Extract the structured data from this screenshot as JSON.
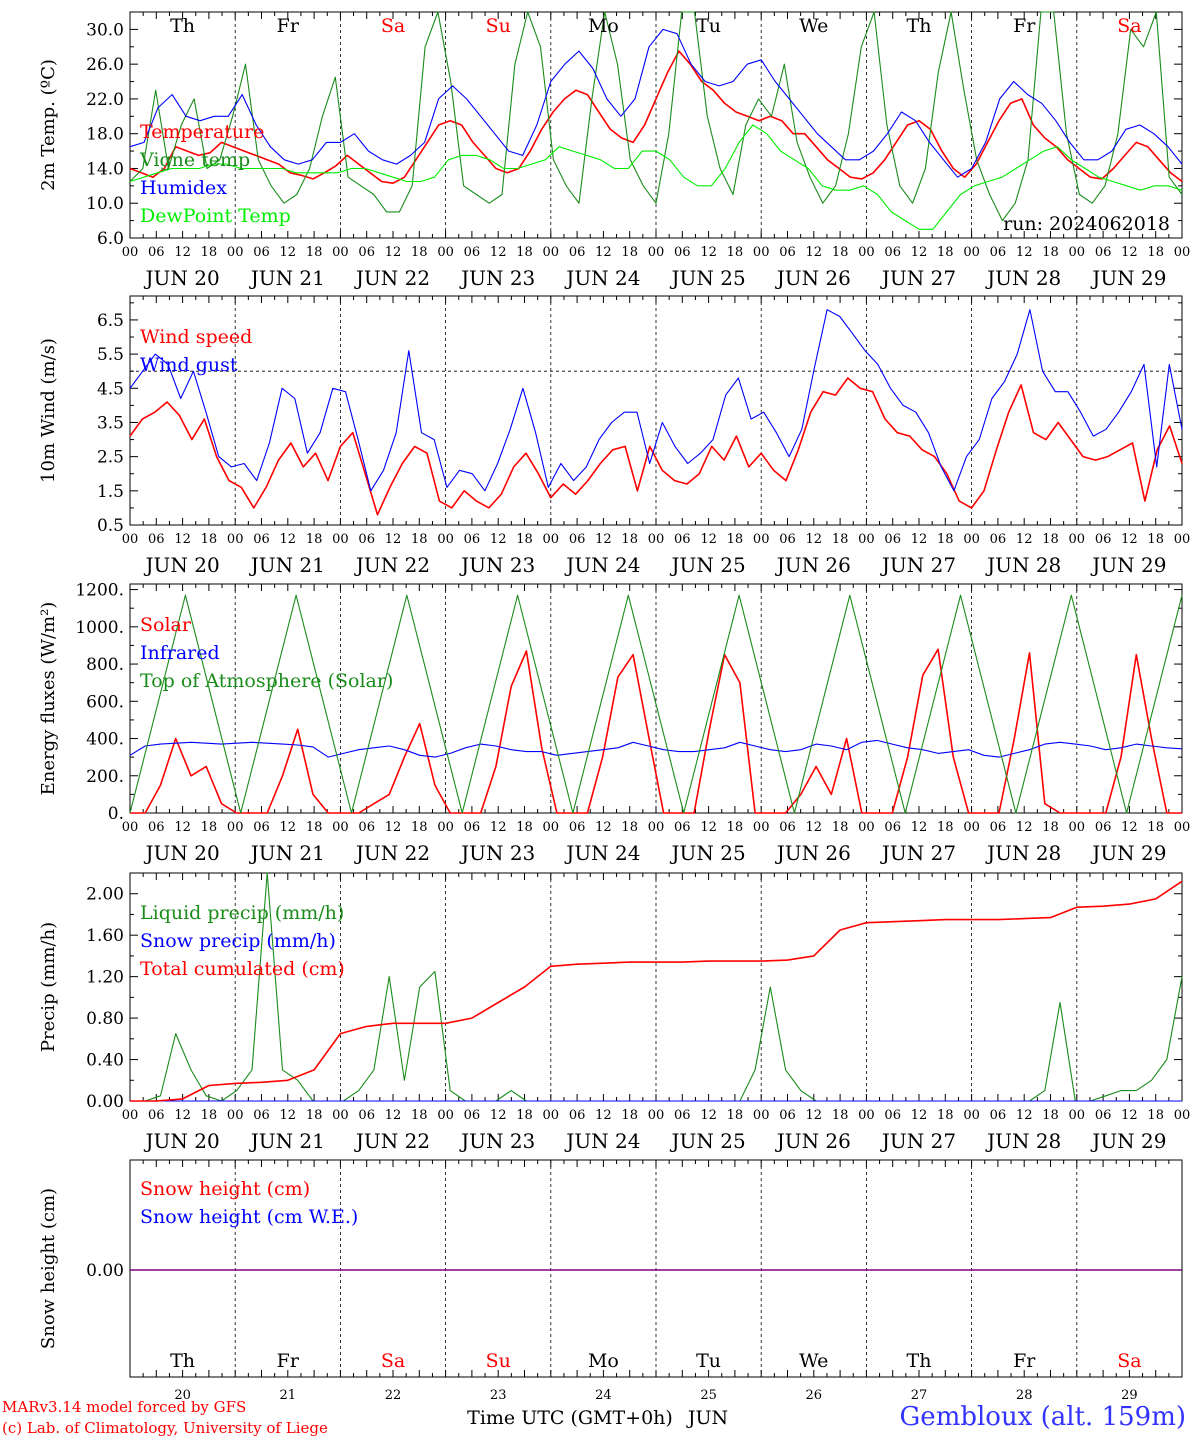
{
  "days": [
    {
      "date": "JUN 20",
      "num": "20",
      "dow": "Th",
      "weekend": false
    },
    {
      "date": "JUN 21",
      "num": "21",
      "dow": "Fr",
      "weekend": false
    },
    {
      "date": "JUN 22",
      "num": "22",
      "dow": "Sa",
      "weekend": true
    },
    {
      "date": "JUN 23",
      "num": "23",
      "dow": "Su",
      "weekend": true
    },
    {
      "date": "JUN 24",
      "num": "24",
      "dow": "Mo",
      "weekend": false
    },
    {
      "date": "JUN 25",
      "num": "25",
      "dow": "Tu",
      "weekend": false
    },
    {
      "date": "JUN 26",
      "num": "26",
      "dow": "We",
      "weekend": false
    },
    {
      "date": "JUN 27",
      "num": "27",
      "dow": "Th",
      "weekend": false
    },
    {
      "date": "JUN 28",
      "num": "28",
      "dow": "Fr",
      "weekend": false
    },
    {
      "date": "JUN 29",
      "num": "29",
      "dow": "Sa",
      "weekend": true
    }
  ],
  "hour_ticks": [
    "00",
    "06",
    "12",
    "18"
  ],
  "final_tick": "00",
  "colors": {
    "red": "#ff0000",
    "green": "#1a8c1a",
    "blue": "#0000ff",
    "lightgreen": "#00ee00",
    "purple": "#800080",
    "weekend": "#ff0000",
    "station": "#3333ff"
  },
  "footer": {
    "xlabel": "Time UTC (GMT+0h)",
    "month": "JUN",
    "credit1": "MARv3.14 model forced by GFS",
    "credit2": "(c) Lab. of Climatology, University of Liege",
    "station": "Gembloux (alt. 159m)"
  },
  "chart_data": [
    {
      "type": "line",
      "ylabel": "2m Temp. (ºC)",
      "ylim": [
        6,
        32
      ],
      "yticks": [
        "30.0",
        "26.0",
        "22.0",
        "18.0",
        "14.0",
        "10.0",
        "6.0"
      ],
      "run_label": "run: 2024062018",
      "series": [
        {
          "name": "Temperature",
          "color": "red",
          "values": [
            14,
            13.5,
            13,
            14,
            16.5,
            16,
            15.5,
            15.8,
            17,
            16.5,
            16,
            15.5,
            15,
            14.5,
            13.5,
            13.2,
            12.8,
            13.5,
            14.3,
            15.5,
            14.5,
            13.5,
            12.5,
            12.3,
            13,
            15,
            17,
            19,
            19.5,
            19,
            17,
            15.5,
            14,
            13.5,
            14,
            16,
            18.5,
            20.5,
            22,
            23,
            22.5,
            20.5,
            18.5,
            17.5,
            17,
            19,
            22,
            25,
            27.5,
            26,
            24,
            23,
            21.5,
            20.5,
            20,
            19.5,
            20,
            19.5,
            18,
            18,
            16.5,
            15,
            14,
            13,
            12.8,
            13.5,
            15,
            17,
            19,
            19.5,
            18.5,
            16,
            14,
            13,
            14.5,
            17,
            19.5,
            21.5,
            22,
            19,
            17.5,
            16.5,
            15,
            14,
            13,
            12.8,
            14,
            15.5,
            17,
            16.5,
            15,
            13.5,
            12.5
          ]
        },
        {
          "name": "Vigne temp",
          "color": "green",
          "values": [
            12.5,
            14,
            23,
            14,
            19,
            22,
            14,
            15,
            20,
            26,
            15,
            12,
            10,
            11,
            14,
            20,
            24.5,
            13,
            12,
            11,
            9,
            9,
            12,
            28,
            33,
            24,
            12,
            11,
            10,
            11,
            26,
            33,
            28,
            15,
            12,
            10,
            22,
            33,
            26,
            15,
            12,
            10,
            18,
            33,
            35,
            20,
            14,
            11,
            19,
            22,
            20,
            26,
            17,
            13,
            10,
            12,
            18,
            28,
            32,
            19,
            12,
            10,
            14,
            25,
            33,
            23,
            15,
            11,
            8,
            10,
            15,
            33,
            35,
            18,
            11,
            10,
            12,
            18,
            30,
            28,
            33,
            13,
            11
          ]
        },
        {
          "name": "Humidex",
          "color": "blue",
          "values": [
            16.5,
            17,
            21,
            22.5,
            20,
            19.5,
            20,
            20,
            22.5,
            19,
            16.5,
            15,
            14.5,
            15,
            17,
            17,
            18,
            16,
            15,
            14.5,
            15.5,
            17,
            22,
            23.5,
            22,
            20,
            18,
            16,
            15.5,
            19,
            24,
            26,
            27.5,
            25.5,
            22,
            20,
            22,
            28,
            30,
            29.5,
            26,
            24,
            23.5,
            24,
            26,
            26.5,
            24,
            22,
            20,
            18,
            16.5,
            15,
            15,
            16,
            18,
            20.5,
            19.5,
            17,
            15,
            13,
            14,
            17,
            22,
            24,
            22.5,
            21.5,
            19.5,
            17,
            15,
            15,
            16,
            18.5,
            19,
            18,
            16.5,
            14.5
          ]
        },
        {
          "name": "DewPoint Temp",
          "color": "lightgreen",
          "values": [
            12.5,
            13,
            13.5,
            14,
            14,
            14,
            14.5,
            14.5,
            14,
            14,
            14,
            14,
            13.5,
            13.5,
            13.5,
            13.5,
            14,
            14,
            13.5,
            13,
            12.5,
            12.5,
            13,
            15,
            15.5,
            15.5,
            15,
            14,
            14,
            14.5,
            15,
            16.5,
            16,
            15.5,
            15,
            14,
            14,
            16,
            16,
            15,
            13,
            12,
            12,
            14,
            17,
            19,
            18,
            16,
            15,
            14,
            12,
            11.5,
            11.5,
            12,
            11,
            9,
            8,
            7,
            7,
            9,
            11,
            12,
            12.5,
            13,
            14,
            15,
            16,
            16.5,
            15,
            14,
            13,
            12.5,
            12,
            11.5,
            12,
            12,
            11.5
          ]
        }
      ],
      "hlines": []
    },
    {
      "type": "line",
      "ylabel": "10m Wind (m/s)",
      "ylim": [
        0.5,
        7.2
      ],
      "yticks": [
        "6.5",
        "5.5",
        "4.5",
        "3.5",
        "2.5",
        "1.5",
        "0.5"
      ],
      "run_label": "",
      "series": [
        {
          "name": "Wind speed",
          "color": "red",
          "values": [
            3.1,
            3.6,
            3.8,
            4.1,
            3.7,
            3,
            3.6,
            2.5,
            1.8,
            1.6,
            1,
            1.6,
            2.4,
            2.9,
            2.2,
            2.6,
            1.8,
            2.8,
            3.2,
            2,
            0.8,
            1.6,
            2.3,
            2.8,
            2.6,
            1.2,
            1,
            1.5,
            1.2,
            1,
            1.4,
            2.2,
            2.6,
            2,
            1.3,
            1.7,
            1.4,
            1.8,
            2.3,
            2.7,
            2.8,
            1.5,
            2.8,
            2.1,
            1.8,
            1.7,
            2,
            2.8,
            2.4,
            3.1,
            2.2,
            2.6,
            2.1,
            1.8,
            2.7,
            3.8,
            4.4,
            4.3,
            4.8,
            4.5,
            4.4,
            3.6,
            3.2,
            3.1,
            2.7,
            2.5,
            2,
            1.2,
            1,
            1.5,
            2.7,
            3.8,
            4.6,
            3.2,
            3,
            3.5,
            3,
            2.5,
            2.4,
            2.5,
            2.7,
            2.9,
            1.2,
            2.7,
            3.4,
            2.3
          ]
        },
        {
          "name": "Wind gust",
          "color": "blue",
          "values": [
            4.5,
            5,
            5.5,
            5.2,
            4.2,
            5,
            3.8,
            2.5,
            2.2,
            2.3,
            1.8,
            2.9,
            4.5,
            4.2,
            2.6,
            3.2,
            4.5,
            4.4,
            3,
            1.5,
            2.1,
            3.2,
            5.6,
            3.2,
            3,
            1.6,
            2.1,
            2,
            1.5,
            2.3,
            3.3,
            4.5,
            3.2,
            1.6,
            2.3,
            1.8,
            2.2,
            3,
            3.5,
            3.8,
            3.8,
            2.3,
            3.5,
            2.8,
            2.3,
            2.6,
            3,
            4.3,
            4.8,
            3.6,
            3.8,
            3.2,
            2.5,
            3.3,
            5.1,
            6.8,
            6.6,
            6.1,
            5.6,
            5.2,
            4.5,
            4,
            3.8,
            3.2,
            2.2,
            1.5,
            2.5,
            3,
            4.2,
            4.7,
            5.5,
            6.8,
            5,
            4.4,
            4.4,
            3.8,
            3.1,
            3.3,
            3.8,
            4.4,
            5.2,
            2.2,
            5.2,
            3.3
          ]
        }
      ],
      "hlines": [
        5
      ]
    },
    {
      "type": "line",
      "ylabel": "Energy fluxes (W/m²)",
      "ylim": [
        0,
        1230
      ],
      "yticks": [
        "1200.",
        "1000.",
        "800.",
        "600.",
        "400.",
        "200.",
        "0."
      ],
      "run_label": "",
      "series": [
        {
          "name": "Solar",
          "color": "red",
          "values": [
            0,
            0,
            150,
            400,
            200,
            250,
            50,
            0,
            0,
            0,
            200,
            450,
            100,
            0,
            0,
            0,
            50,
            100,
            300,
            480,
            150,
            0,
            0,
            0,
            250,
            680,
            870,
            350,
            0,
            0,
            0,
            300,
            730,
            850,
            420,
            0,
            0,
            0,
            450,
            850,
            700,
            0,
            0,
            0,
            100,
            250,
            100,
            400,
            0,
            0,
            0,
            300,
            740,
            880,
            300,
            0,
            0,
            0,
            400,
            860,
            50,
            0,
            0,
            0,
            0,
            300,
            850,
            400,
            0,
            0
          ]
        },
        {
          "name": "Infrared",
          "color": "blue",
          "values": [
            310,
            360,
            370,
            375,
            380,
            375,
            370,
            375,
            380,
            375,
            370,
            365,
            355,
            300,
            320,
            340,
            350,
            360,
            340,
            310,
            300,
            320,
            350,
            370,
            360,
            340,
            330,
            330,
            310,
            320,
            330,
            340,
            350,
            380,
            360,
            340,
            330,
            330,
            340,
            350,
            380,
            360,
            340,
            330,
            340,
            370,
            360,
            340,
            380,
            390,
            370,
            350,
            340,
            320,
            330,
            340,
            310,
            300,
            320,
            340,
            370,
            380,
            370,
            360,
            340,
            350,
            370,
            360,
            350,
            345
          ]
        },
        {
          "name": "Top of Atmosphere (Solar)",
          "color": "green",
          "values": [
            0,
            1170,
            0,
            1170,
            0,
            1170,
            0,
            1170,
            0,
            1170,
            0,
            1170,
            0,
            1170,
            0,
            1170,
            0,
            1170,
            0,
            1170
          ]
        }
      ],
      "hlines": []
    },
    {
      "type": "line",
      "ylabel": "Precip (mm/h)",
      "ylim": [
        0,
        2.2
      ],
      "yticks": [
        "2.00",
        "1.60",
        "1.20",
        "0.80",
        "0.40",
        "0.00"
      ],
      "run_label": "",
      "series": [
        {
          "name": "Liquid precip (mm/h)",
          "color": "green",
          "values": [
            0,
            0,
            0.05,
            0.65,
            0.3,
            0.05,
            0,
            0.1,
            0.3,
            2.2,
            0.3,
            0.2,
            0,
            0,
            0,
            0.1,
            0.3,
            1.2,
            0.2,
            1.1,
            1.25,
            0.1,
            0,
            0,
            0,
            0.1,
            0,
            0,
            0,
            0,
            0,
            0,
            0,
            0,
            0,
            0,
            0,
            0,
            0,
            0,
            0,
            0.3,
            1.1,
            0.3,
            0.1,
            0,
            0,
            0,
            0,
            0,
            0,
            0,
            0,
            0,
            0,
            0,
            0,
            0,
            0,
            0,
            0.1,
            0.95,
            0,
            0,
            0.05,
            0.1,
            0.1,
            0.2,
            0.4,
            1.2
          ]
        },
        {
          "name": "Snow precip (mm/h)",
          "color": "blue",
          "values": [
            0,
            0
          ]
        },
        {
          "name": "Total cumulated (cm)",
          "color": "red",
          "values": [
            0,
            0,
            0.02,
            0.15,
            0.17,
            0.18,
            0.2,
            0.3,
            0.65,
            0.72,
            0.75,
            0.75,
            0.75,
            0.8,
            0.95,
            1.1,
            1.3,
            1.32,
            1.33,
            1.34,
            1.34,
            1.34,
            1.35,
            1.35,
            1.35,
            1.36,
            1.4,
            1.65,
            1.72,
            1.73,
            1.74,
            1.75,
            1.75,
            1.75,
            1.76,
            1.77,
            1.87,
            1.88,
            1.9,
            1.95,
            2.12
          ]
        }
      ],
      "hlines": []
    },
    {
      "type": "line",
      "ylabel": "Snow height (cm)",
      "ylim": [
        -1,
        1
      ],
      "yticks": [
        "0.00"
      ],
      "run_label": "",
      "series": [
        {
          "name": "Snow height (cm)",
          "color": "red",
          "values": []
        },
        {
          "name": "Snow height (cm W.E.)",
          "color": "blue",
          "values": []
        },
        {
          "name": "",
          "color": "purple",
          "values": [
            0,
            0
          ]
        }
      ],
      "hlines": []
    }
  ]
}
